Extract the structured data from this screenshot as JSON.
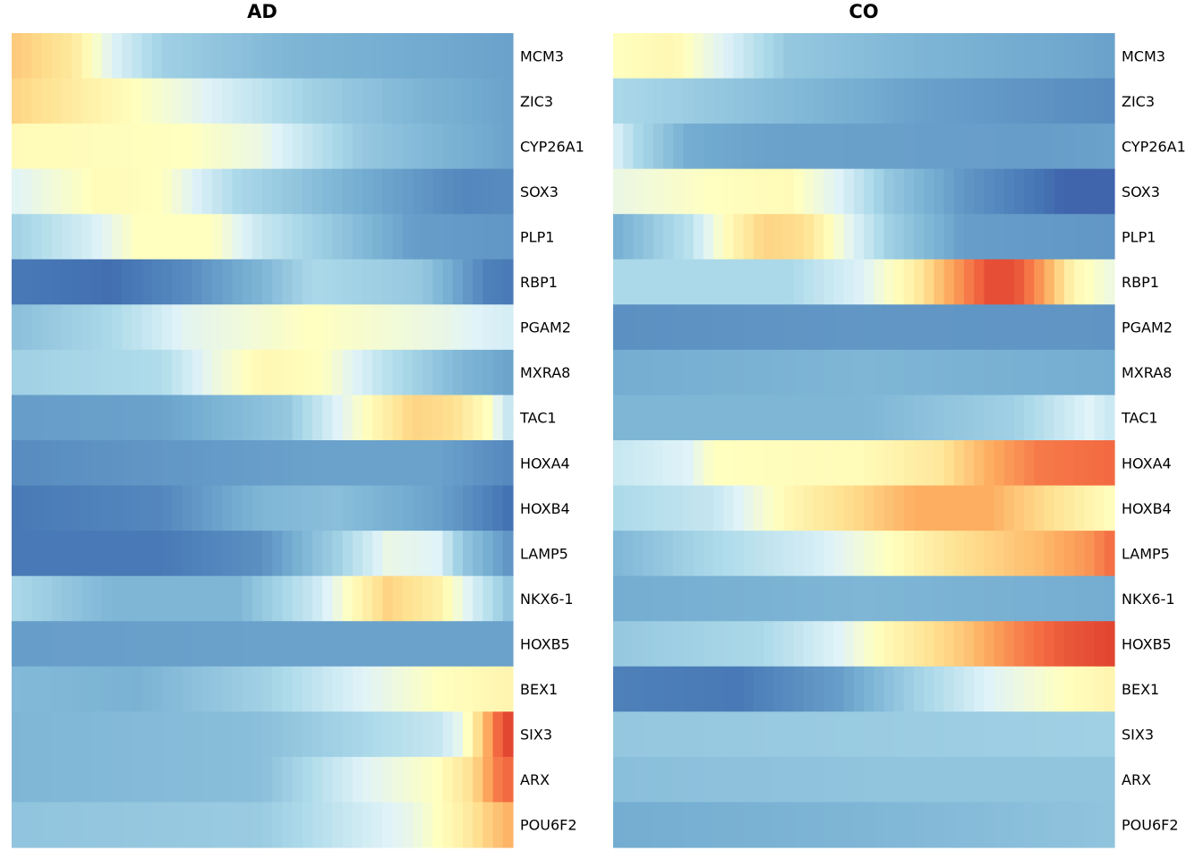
{
  "chart_data": [
    {
      "type": "heatmap",
      "title": "AD",
      "genes": [
        "MCM3",
        "ZIC3",
        "CYP26A1",
        "SOX3",
        "PLP1",
        "RBP1",
        "PGAM2",
        "MXRA8",
        "TAC1",
        "HOXA4",
        "HOXB4",
        "LAMP5",
        "NKX6-1",
        "HOXB5",
        "BEX1",
        "SIX3",
        "ARX",
        "POU6F2"
      ],
      "num_columns": 50,
      "value_range": [
        -1,
        1
      ],
      "profiles": [
        [
          [
            0,
            0.35
          ],
          [
            0.12,
            0.2
          ],
          [
            0.2,
            -0.1
          ],
          [
            0.3,
            -0.35
          ],
          [
            0.55,
            -0.5
          ],
          [
            1,
            -0.6
          ]
        ],
        [
          [
            0,
            0.3
          ],
          [
            0.15,
            0.15
          ],
          [
            0.35,
            -0.05
          ],
          [
            0.6,
            -0.35
          ],
          [
            0.8,
            -0.5
          ],
          [
            1,
            -0.6
          ]
        ],
        [
          [
            0,
            0.08
          ],
          [
            0.35,
            0.05
          ],
          [
            0.5,
            -0.05
          ],
          [
            0.7,
            -0.4
          ],
          [
            1,
            -0.6
          ]
        ],
        [
          [
            0,
            -0.1
          ],
          [
            0.18,
            0.08
          ],
          [
            0.3,
            0.05
          ],
          [
            0.45,
            -0.3
          ],
          [
            0.7,
            -0.55
          ],
          [
            0.9,
            -0.72
          ],
          [
            1,
            -0.7
          ]
        ],
        [
          [
            0,
            -0.35
          ],
          [
            0.15,
            -0.15
          ],
          [
            0.25,
            0.05
          ],
          [
            0.4,
            0.05
          ],
          [
            0.5,
            -0.2
          ],
          [
            0.8,
            -0.62
          ],
          [
            1,
            -0.65
          ]
        ],
        [
          [
            0,
            -0.78
          ],
          [
            0.2,
            -0.82
          ],
          [
            0.35,
            -0.7
          ],
          [
            0.5,
            -0.5
          ],
          [
            0.6,
            -0.3
          ],
          [
            0.82,
            -0.4
          ],
          [
            0.95,
            -0.75
          ],
          [
            1,
            -0.78
          ]
        ],
        [
          [
            0,
            -0.45
          ],
          [
            0.2,
            -0.3
          ],
          [
            0.35,
            -0.08
          ],
          [
            0.6,
            0.05
          ],
          [
            0.85,
            -0.05
          ],
          [
            1,
            -0.15
          ]
        ],
        [
          [
            0,
            -0.35
          ],
          [
            0.3,
            -0.28
          ],
          [
            0.4,
            -0.05
          ],
          [
            0.5,
            0.1
          ],
          [
            0.62,
            0.05
          ],
          [
            0.75,
            -0.25
          ],
          [
            0.9,
            -0.5
          ],
          [
            1,
            -0.6
          ]
        ],
        [
          [
            0,
            -0.62
          ],
          [
            0.3,
            -0.6
          ],
          [
            0.55,
            -0.4
          ],
          [
            0.65,
            -0.1
          ],
          [
            0.8,
            0.3
          ],
          [
            0.88,
            0.25
          ],
          [
            0.95,
            0.05
          ],
          [
            1,
            -0.25
          ]
        ],
        [
          [
            0,
            -0.7
          ],
          [
            0.3,
            -0.65
          ],
          [
            0.6,
            -0.6
          ],
          [
            0.85,
            -0.6
          ],
          [
            1,
            -0.72
          ]
        ],
        [
          [
            0,
            -0.78
          ],
          [
            0.3,
            -0.72
          ],
          [
            0.5,
            -0.5
          ],
          [
            0.65,
            -0.45
          ],
          [
            0.85,
            -0.6
          ],
          [
            1,
            -0.82
          ]
        ],
        [
          [
            0,
            -0.78
          ],
          [
            0.3,
            -0.78
          ],
          [
            0.5,
            -0.68
          ],
          [
            0.65,
            -0.35
          ],
          [
            0.75,
            -0.05
          ],
          [
            0.85,
            -0.1
          ],
          [
            0.9,
            -0.4
          ],
          [
            1,
            -0.68
          ]
        ],
        [
          [
            0,
            -0.3
          ],
          [
            0.2,
            -0.5
          ],
          [
            0.45,
            -0.5
          ],
          [
            0.6,
            -0.2
          ],
          [
            0.75,
            0.3
          ],
          [
            0.85,
            0.15
          ],
          [
            0.95,
            -0.25
          ],
          [
            1,
            -0.45
          ]
        ],
        [
          [
            0,
            -0.62
          ],
          [
            0.5,
            -0.6
          ],
          [
            1,
            -0.6
          ]
        ],
        [
          [
            0,
            -0.48
          ],
          [
            0.25,
            -0.52
          ],
          [
            0.5,
            -0.35
          ],
          [
            0.7,
            -0.1
          ],
          [
            0.85,
            0.05
          ],
          [
            1,
            0.12
          ]
        ],
        [
          [
            0,
            -0.5
          ],
          [
            0.5,
            -0.45
          ],
          [
            0.85,
            -0.2
          ],
          [
            0.9,
            -0.05
          ],
          [
            0.94,
            0.35
          ],
          [
            0.98,
            0.85
          ],
          [
            1,
            0.92
          ]
        ],
        [
          [
            0,
            -0.5
          ],
          [
            0.5,
            -0.45
          ],
          [
            0.7,
            -0.1
          ],
          [
            0.85,
            0.05
          ],
          [
            0.92,
            0.25
          ],
          [
            0.97,
            0.65
          ],
          [
            1,
            0.75
          ]
        ],
        [
          [
            0,
            -0.42
          ],
          [
            0.5,
            -0.38
          ],
          [
            0.8,
            -0.05
          ],
          [
            0.9,
            0.15
          ],
          [
            0.96,
            0.35
          ],
          [
            1,
            0.45
          ]
        ]
      ]
    },
    {
      "type": "heatmap",
      "title": "CO",
      "genes": [
        "MCM3",
        "ZIC3",
        "CYP26A1",
        "SOX3",
        "PLP1",
        "RBP1",
        "PGAM2",
        "MXRA8",
        "TAC1",
        "HOXA4",
        "HOXB4",
        "LAMP5",
        "NKX6-1",
        "HOXB5",
        "BEX1",
        "SIX3",
        "ARX",
        "POU6F2"
      ],
      "num_columns": 50,
      "value_range": [
        -1,
        1
      ],
      "profiles": [
        [
          [
            0,
            0.05
          ],
          [
            0.12,
            0.1
          ],
          [
            0.22,
            -0.1
          ],
          [
            0.35,
            -0.4
          ],
          [
            0.6,
            -0.5
          ],
          [
            1,
            -0.6
          ]
        ],
        [
          [
            0,
            -0.3
          ],
          [
            0.3,
            -0.45
          ],
          [
            0.6,
            -0.6
          ],
          [
            0.9,
            -0.68
          ],
          [
            1,
            -0.7
          ]
        ],
        [
          [
            0,
            -0.1
          ],
          [
            0.05,
            -0.3
          ],
          [
            0.15,
            -0.55
          ],
          [
            0.3,
            -0.6
          ],
          [
            0.85,
            -0.62
          ],
          [
            1,
            -0.6
          ]
        ],
        [
          [
            0,
            -0.05
          ],
          [
            0.2,
            0.05
          ],
          [
            0.35,
            0.08
          ],
          [
            0.45,
            -0.1
          ],
          [
            0.55,
            -0.4
          ],
          [
            0.7,
            -0.65
          ],
          [
            0.9,
            -0.85
          ],
          [
            1,
            -0.85
          ]
        ],
        [
          [
            0,
            -0.55
          ],
          [
            0.15,
            -0.25
          ],
          [
            0.22,
            0.05
          ],
          [
            0.3,
            0.3
          ],
          [
            0.38,
            0.25
          ],
          [
            0.45,
            0
          ],
          [
            0.55,
            -0.35
          ],
          [
            0.7,
            -0.62
          ],
          [
            1,
            -0.65
          ]
        ],
        [
          [
            0,
            -0.3
          ],
          [
            0.35,
            -0.3
          ],
          [
            0.5,
            -0.1
          ],
          [
            0.6,
            0.15
          ],
          [
            0.7,
            0.6
          ],
          [
            0.75,
            0.85
          ],
          [
            0.8,
            0.85
          ],
          [
            0.85,
            0.55
          ],
          [
            0.92,
            0.1
          ],
          [
            1,
            -0.05
          ]
        ],
        [
          [
            0,
            -0.68
          ],
          [
            0.5,
            -0.65
          ],
          [
            1,
            -0.66
          ]
        ],
        [
          [
            0,
            -0.55
          ],
          [
            0.5,
            -0.5
          ],
          [
            1,
            -0.55
          ]
        ],
        [
          [
            0,
            -0.5
          ],
          [
            0.5,
            -0.5
          ],
          [
            0.8,
            -0.35
          ],
          [
            0.95,
            -0.1
          ],
          [
            1,
            -0.2
          ]
        ],
        [
          [
            0,
            -0.2
          ],
          [
            0.15,
            -0.1
          ],
          [
            0.2,
            0.05
          ],
          [
            0.5,
            0.08
          ],
          [
            0.65,
            0.2
          ],
          [
            0.75,
            0.45
          ],
          [
            0.85,
            0.65
          ],
          [
            1,
            0.72
          ]
        ],
        [
          [
            0,
            -0.3
          ],
          [
            0.2,
            -0.2
          ],
          [
            0.35,
            0.1
          ],
          [
            0.5,
            0.3
          ],
          [
            0.6,
            0.45
          ],
          [
            0.75,
            0.45
          ],
          [
            0.9,
            0.2
          ],
          [
            1,
            0.05
          ]
        ],
        [
          [
            0,
            -0.5
          ],
          [
            0.2,
            -0.3
          ],
          [
            0.4,
            -0.15
          ],
          [
            0.55,
            0.05
          ],
          [
            0.7,
            0.25
          ],
          [
            0.85,
            0.4
          ],
          [
            0.95,
            0.55
          ],
          [
            1,
            0.72
          ]
        ],
        [
          [
            0,
            -0.55
          ],
          [
            0.5,
            -0.5
          ],
          [
            1,
            -0.55
          ]
        ],
        [
          [
            0,
            -0.4
          ],
          [
            0.3,
            -0.3
          ],
          [
            0.45,
            -0.1
          ],
          [
            0.55,
            0.1
          ],
          [
            0.7,
            0.35
          ],
          [
            0.8,
            0.6
          ],
          [
            0.9,
            0.8
          ],
          [
            1,
            0.9
          ]
        ],
        [
          [
            0,
            -0.75
          ],
          [
            0.25,
            -0.78
          ],
          [
            0.45,
            -0.62
          ],
          [
            0.6,
            -0.35
          ],
          [
            0.75,
            -0.1
          ],
          [
            0.9,
            0.05
          ],
          [
            1,
            0.12
          ]
        ],
        [
          [
            0,
            -0.4
          ],
          [
            0.5,
            -0.38
          ],
          [
            1,
            -0.35
          ]
        ],
        [
          [
            0,
            -0.45
          ],
          [
            0.5,
            -0.42
          ],
          [
            1,
            -0.42
          ]
        ],
        [
          [
            0,
            -0.55
          ],
          [
            0.5,
            -0.5
          ],
          [
            1,
            -0.42
          ]
        ]
      ]
    }
  ]
}
